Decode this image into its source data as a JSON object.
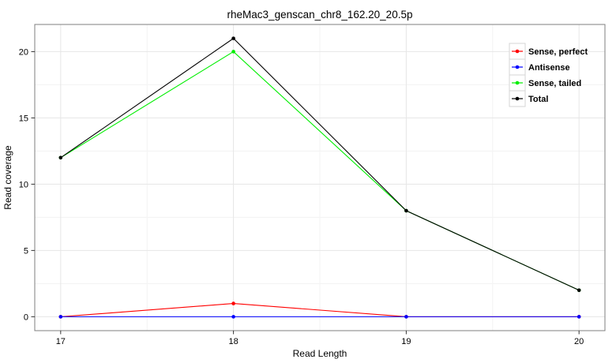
{
  "chart_data": {
    "type": "line",
    "title": "rheMac3_genscan_chr8_162.20_20.5p",
    "xlabel": "Read Length",
    "ylabel": "Read coverage",
    "x": [
      17,
      18,
      19,
      20
    ],
    "series": [
      {
        "name": "Sense, perfect",
        "color": "#ff0000",
        "values": [
          0,
          1,
          0,
          0
        ]
      },
      {
        "name": "Antisense",
        "color": "#0000ff",
        "values": [
          0,
          0,
          0,
          0
        ]
      },
      {
        "name": "Sense, tailed",
        "color": "#00ee00",
        "values": [
          12,
          20,
          8,
          2
        ]
      },
      {
        "name": "Total",
        "color": "#000000",
        "values": [
          12,
          21,
          8,
          2
        ]
      }
    ],
    "xticks": [
      17,
      18,
      19,
      20
    ],
    "yticks": [
      0,
      5,
      10,
      15,
      20
    ],
    "xlim": [
      16.85,
      20.15
    ],
    "ylim": [
      -1.05,
      22.05
    ],
    "grid": true,
    "legend_position": "inside-top-right",
    "legend_entries": [
      "Sense, perfect",
      "Antisense",
      "Sense, tailed",
      "Total"
    ]
  },
  "style_colors": {
    "panel_border": "#7f7f7f",
    "grid_major": "#e6e6e6",
    "grid_minor": "#f3f3f3",
    "tick_mark": "#333333",
    "legend_key_fill": "#ffffff",
    "legend_key_border": "#d6d6d6",
    "background": "#ffffff"
  }
}
